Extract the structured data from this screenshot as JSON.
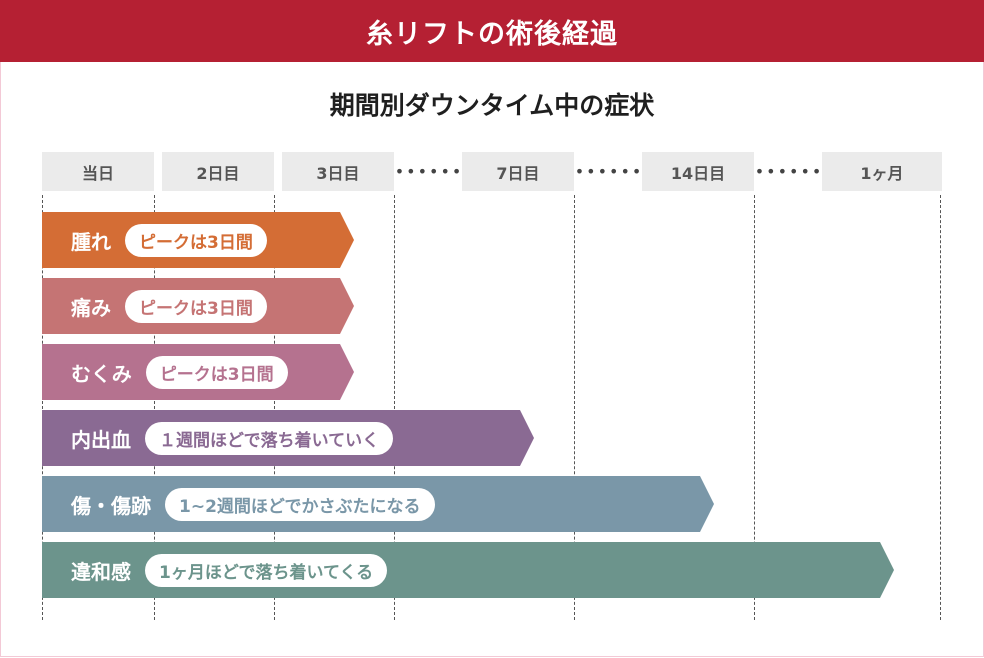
{
  "header": {
    "title": "糸リフトの術後経過"
  },
  "subtitle": "期間別ダウンタイム中の症状",
  "timeline": {
    "labels": [
      "当日",
      "2日目",
      "3日目",
      "7日目",
      "14日目",
      "1ヶ月"
    ],
    "ellipsis": "••••••"
  },
  "colors": {
    "header": "#b52033",
    "label_bg": "#ebebeb",
    "swelling": "#d46d35",
    "pain": "#c57474",
    "edema": "#b5728f",
    "bruising": "#8a6a93",
    "wounds": "#7a97a8",
    "discomfort": "#6c948c"
  },
  "symptoms": [
    {
      "name": "腫れ",
      "note": "ピークは3日間"
    },
    {
      "name": "痛み",
      "note": "ピークは3日間"
    },
    {
      "name": "むくみ",
      "note": "ピークは3日間"
    },
    {
      "name": "内出血",
      "note": "１週間ほどで落ち着いていく"
    },
    {
      "name": "傷・傷跡",
      "note": "1~2週間ほどでかさぶたになる"
    },
    {
      "name": "違和感",
      "note": "1ヶ月ほどで落ち着いてくる"
    }
  ]
}
